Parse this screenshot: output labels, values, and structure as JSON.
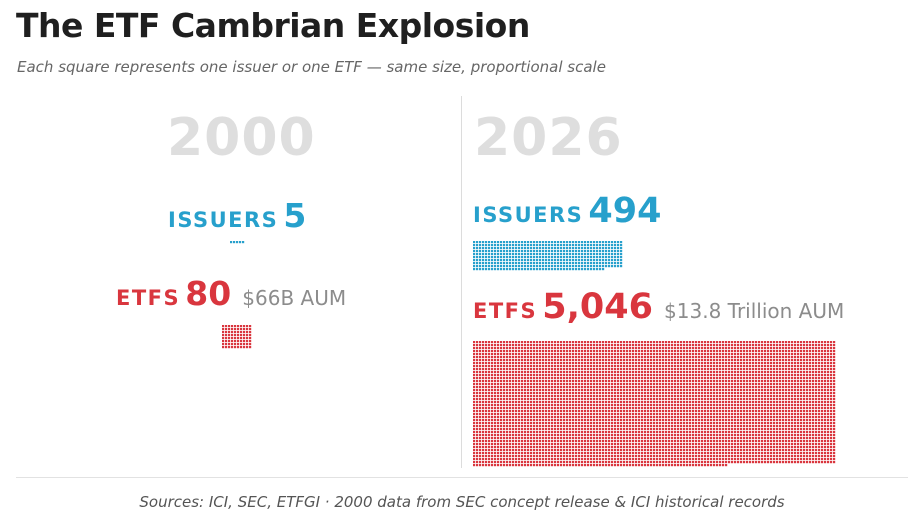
{
  "title": "The ETF Cambrian Explosion",
  "subtitle": "Each square represents one issuer or one ETF — same size, proportional scale",
  "sources": "Sources: ICI, SEC, ETFGI · 2000 data from SEC concept release & ICI historical records",
  "colors": {
    "issuers": "#27a0cc",
    "etfs": "#d9363e",
    "year": "#dedede",
    "aum": "#8c8c8c"
  },
  "chart_data": {
    "type": "waffle",
    "panels": [
      {
        "year": "2000",
        "issuers_label": "ISSUERS",
        "issuers_value_text": "5",
        "issuers_count": 5,
        "etfs_label": "ETFS",
        "etfs_value_text": "80",
        "etfs_count": 80,
        "aum_text": "$66B AUM"
      },
      {
        "year": "2026",
        "issuers_label": "ISSUERS",
        "issuers_value_text": "494",
        "issuers_count": 494,
        "etfs_label": "ETFS",
        "etfs_value_text": "5,046",
        "etfs_count": 5046,
        "aum_text": "$13.8 Trillion AUM"
      }
    ]
  }
}
